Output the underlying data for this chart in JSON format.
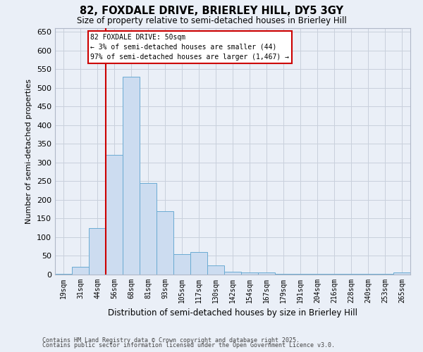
{
  "title": "82, FOXDALE DRIVE, BRIERLEY HILL, DY5 3GY",
  "subtitle": "Size of property relative to semi-detached houses in Brierley Hill",
  "xlabel": "Distribution of semi-detached houses by size in Brierley Hill",
  "ylabel": "Number of semi-detached properties",
  "footnote1": "Contains HM Land Registry data © Crown copyright and database right 2025.",
  "footnote2": "Contains public sector information licensed under the Open Government Licence v3.0.",
  "categories": [
    "19sqm",
    "31sqm",
    "44sqm",
    "56sqm",
    "68sqm",
    "81sqm",
    "93sqm",
    "105sqm",
    "117sqm",
    "130sqm",
    "142sqm",
    "154sqm",
    "167sqm",
    "179sqm",
    "191sqm",
    "204sqm",
    "216sqm",
    "228sqm",
    "240sqm",
    "253sqm",
    "265sqm"
  ],
  "values": [
    2,
    20,
    125,
    320,
    530,
    245,
    170,
    55,
    60,
    25,
    8,
    5,
    5,
    2,
    2,
    2,
    2,
    2,
    2,
    2,
    5
  ],
  "bar_color": "#ccdcf0",
  "bar_edge_color": "#6aabd2",
  "grid_color": "#c8d0dc",
  "background_color": "#eaeff7",
  "red_line_x": 2.5,
  "annotation_text": "82 FOXDALE DRIVE: 50sqm\n← 3% of semi-detached houses are smaller (44)\n97% of semi-detached houses are larger (1,467) →",
  "annotation_box_color": "#ffffff",
  "annotation_border_color": "#cc0000",
  "ylim": [
    0,
    660
  ],
  "yticks": [
    0,
    50,
    100,
    150,
    200,
    250,
    300,
    350,
    400,
    450,
    500,
    550,
    600,
    650
  ]
}
